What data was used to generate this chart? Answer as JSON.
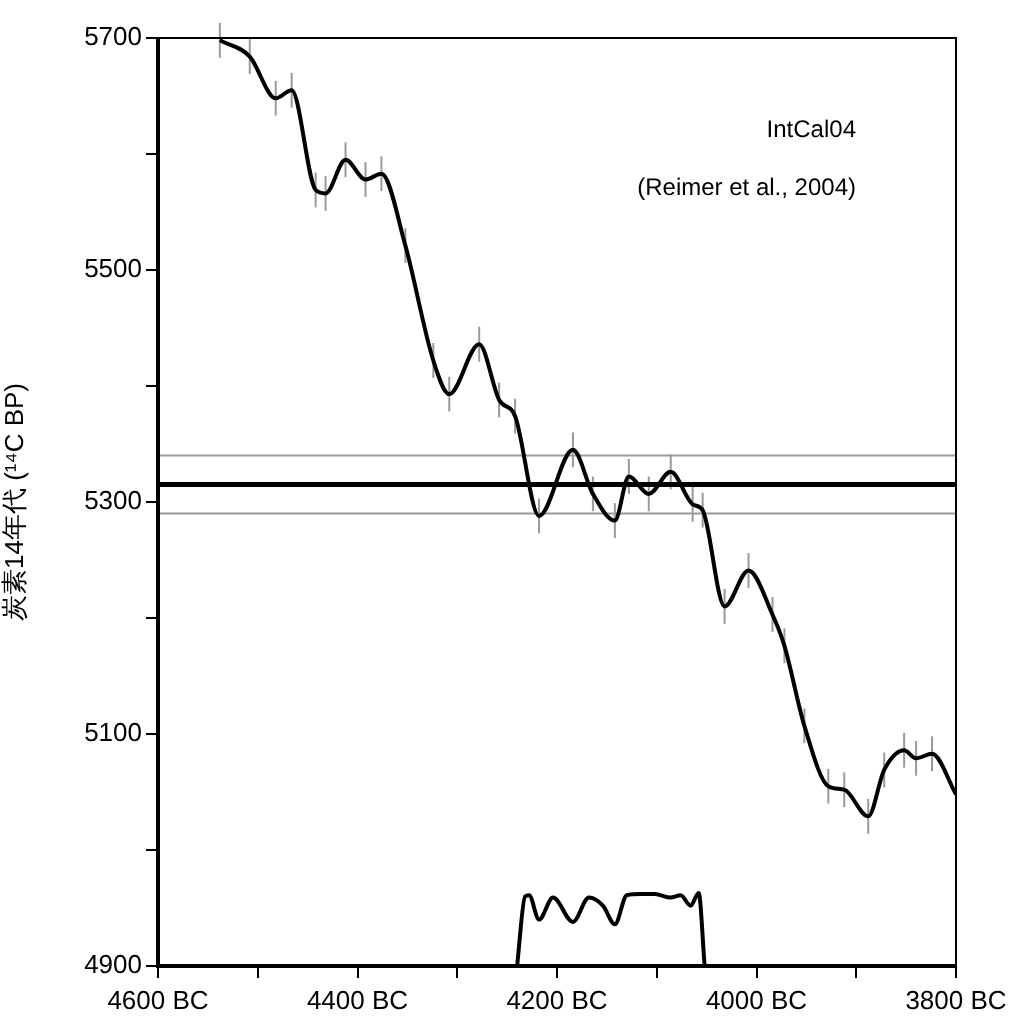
{
  "chart_data": {
    "type": "line",
    "ylabel": "炭素14年代 (¹⁴C BP)",
    "annotations": [
      "IntCal04",
      "(Reimer et al., 2004)"
    ],
    "xlim": [
      4600,
      3800
    ],
    "xticks": [
      {
        "value": 4600,
        "label": "4600 BC"
      },
      {
        "value": 4500,
        "label": null
      },
      {
        "value": 4400,
        "label": "4400 BC"
      },
      {
        "value": 4300,
        "label": null
      },
      {
        "value": 4200,
        "label": "4200 BC"
      },
      {
        "value": 4100,
        "label": null
      },
      {
        "value": 4000,
        "label": "4000 BC"
      },
      {
        "value": 3900,
        "label": null
      },
      {
        "value": 3800,
        "label": "3800 BC"
      }
    ],
    "ylim": [
      4900,
      5700
    ],
    "yticks": [
      4900,
      {
        "value": 5000,
        "label": null
      },
      5100,
      {
        "value": 5200,
        "label": null
      },
      5300,
      {
        "value": 5400,
        "label": null
      },
      5500,
      {
        "value": 5600,
        "label": null
      },
      5700
    ],
    "marker": "none",
    "line_style": "solid",
    "grid": false,
    "legend": false,
    "ref_lines": [
      {
        "axis": "y",
        "value": 5315,
        "color": "#000000"
      },
      {
        "axis": "y",
        "value": 5340,
        "color": "#999999"
      },
      {
        "axis": "y",
        "value": 5290,
        "color": "#999999"
      }
    ],
    "series": [
      {
        "color": "#000000",
        "x": [
          4538,
          4508,
          4482,
          4466,
          4442,
          4432,
          4412,
          4392,
          4376,
          4352,
          4324,
          4308,
          4278,
          4258,
          4242,
          4218,
          4184,
          4164,
          4142,
          4128,
          4108,
          4086,
          4064,
          4054,
          4032,
          4008,
          3984,
          3972,
          3952,
          3928,
          3912,
          3888,
          3872,
          3852,
          3840,
          3824,
          3800
        ],
        "values": [
          5698,
          5684,
          5648,
          5655,
          5569,
          5566,
          5595,
          5578,
          5583,
          5521,
          5422,
          5393,
          5436,
          5388,
          5374,
          5288,
          5345,
          5307,
          5284,
          5322,
          5307,
          5326,
          5298,
          5293,
          5210,
          5241,
          5203,
          5176,
          5107,
          5055,
          5052,
          5029,
          5069,
          5086,
          5079,
          5083,
          5048
        ],
        "errors": [
          15,
          15,
          15,
          15,
          15,
          15,
          15,
          15,
          15,
          15,
          15,
          15,
          15,
          15,
          15,
          15,
          15,
          15,
          15,
          15,
          15,
          15,
          15,
          15,
          15,
          15,
          15,
          15,
          15,
          15,
          15,
          15,
          15,
          15,
          15,
          15,
          15
        ]
      },
      {
        "color": "#000000",
        "x": [
          4240,
          4232,
          4228,
          4218,
          4204,
          4184,
          4168,
          4154,
          4142,
          4130,
          4116,
          4102,
          4086,
          4076,
          4066,
          4058,
          4052
        ],
        "values": [
          4900,
          4960,
          4961,
          4940,
          4959,
          4938,
          4959,
          4952,
          4936,
          4961,
          4962,
          4962,
          4959,
          4961,
          4952,
          4963,
          4900
        ]
      }
    ]
  }
}
